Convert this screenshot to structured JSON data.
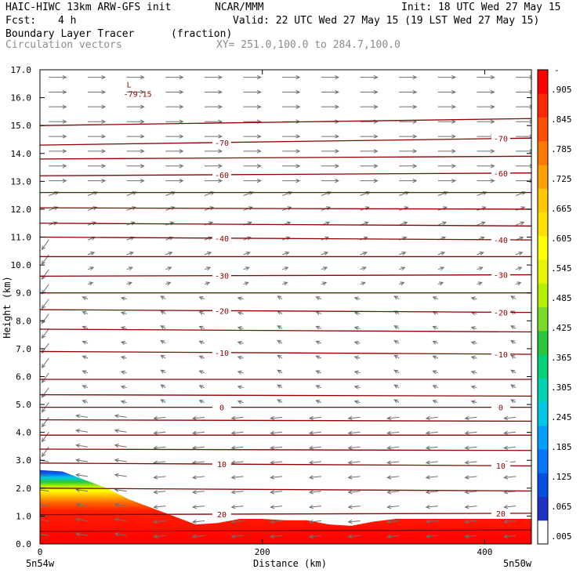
{
  "header": {
    "model": "HAIC-HIWC 13km ARW-GFS init",
    "org": "NCAR/MMM",
    "init": "Init: 18 UTC Wed 27 May 15",
    "fcst_label": "Fcst:",
    "fcst_value": "4 h",
    "valid": "Valid: 22 UTC Wed 27 May 15 (19 LST Wed 27 May 15)",
    "field_name": "Boundary Layer Tracer",
    "field_units": "(fraction)",
    "overlay_name": "Circulation vectors",
    "xsec": "XY= 251.0,100.0 to 284.7,100.0"
  },
  "colors": {
    "contour": "#8b0000",
    "vector": "#707070",
    "colorbar": [
      "#ffffff",
      "#1e32c8",
      "#0050e6",
      "#0078ff",
      "#00a0ff",
      "#00c8e6",
      "#00d2b4",
      "#00d278",
      "#28c83c",
      "#78dc28",
      "#b4f000",
      "#e6f500",
      "#ffff00",
      "#ffe100",
      "#ffc800",
      "#ffa000",
      "#ff7800",
      "#ff5000",
      "#ff2800",
      "#ff0000"
    ]
  },
  "chart_data": {
    "type": "heatmap",
    "xlabel": "Distance (km)",
    "ylabel": "Height (km)",
    "xlim": [
      0,
      442
    ],
    "ylim": [
      0,
      17
    ],
    "xticks": [
      "0",
      "200",
      "400"
    ],
    "xtick_values": [
      0,
      200,
      400
    ],
    "yticks": [
      "0.0",
      "1.0",
      "2.0",
      "3.0",
      "4.0",
      "5.0",
      "6.0",
      "7.0",
      "8.0",
      "9.0",
      "10.0",
      "11.0",
      "12.0",
      "13.0",
      "14.0",
      "15.0",
      "16.0",
      "17.0"
    ],
    "x_endpoint_left": "5n54w",
    "x_endpoint_right": "5n50w",
    "colorbar_labels": [
      ".005",
      ".065",
      ".125",
      ".185",
      ".245",
      ".305",
      ".365",
      ".425",
      ".485",
      ".545",
      ".605",
      ".665",
      ".725",
      ".785",
      ".845",
      ".905"
    ],
    "colorbar_top_label": "-",
    "tracer_boundary": {
      "x_km": [
        0,
        20,
        40,
        60,
        80,
        100,
        120,
        140,
        160,
        180,
        200,
        220,
        240,
        260,
        280,
        300,
        320,
        340,
        360,
        380,
        400,
        420,
        442
      ],
      "top_height_km": [
        2.65,
        2.6,
        2.3,
        2.0,
        1.6,
        1.3,
        1.0,
        0.7,
        0.75,
        0.9,
        0.9,
        0.85,
        0.85,
        0.7,
        0.65,
        0.8,
        0.9,
        0.9,
        0.9,
        0.9,
        0.9,
        0.9,
        0.9
      ]
    },
    "temperature_contours_C": [
      {
        "label": "-70",
        "heights_km": [
          14.3,
          14.55
        ]
      },
      {
        "label": "-60",
        "heights_km": [
          13.2,
          13.3
        ]
      },
      {
        "label": "-40",
        "heights_km": [
          11.0,
          10.9
        ]
      },
      {
        "label": "-30",
        "heights_km": [
          9.6,
          9.65
        ]
      },
      {
        "label": "-20",
        "heights_km": [
          8.4,
          8.3
        ]
      },
      {
        "label": "-10",
        "heights_km": [
          6.9,
          6.8
        ]
      },
      {
        "label": "0",
        "heights_km": [
          4.9,
          4.9
        ]
      },
      {
        "label": "10",
        "heights_km": [
          2.9,
          2.8
        ]
      },
      {
        "label": "20",
        "heights_km": [
          1.05,
          1.1
        ]
      }
    ],
    "extra_contours_km": [
      [
        15.0,
        15.25
      ],
      [
        13.8,
        13.9
      ],
      [
        12.6,
        12.6
      ],
      [
        12.05,
        12.0
      ],
      [
        11.5,
        11.4
      ],
      [
        10.3,
        10.3
      ],
      [
        9.0,
        9.0
      ],
      [
        7.7,
        7.6
      ],
      [
        5.9,
        5.9
      ],
      [
        5.35,
        5.3
      ],
      [
        4.45,
        4.4
      ],
      [
        3.9,
        3.9
      ],
      [
        3.4,
        3.35
      ],
      [
        2.0,
        1.9
      ],
      [
        0.45,
        0.5
      ]
    ],
    "low_center": {
      "symbol": "L",
      "value": "-79.15",
      "x_km": 85,
      "height_km": 16.15
    }
  }
}
